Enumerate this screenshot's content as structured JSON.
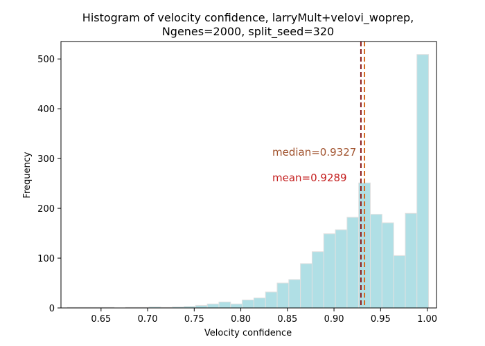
{
  "chart_data": {
    "type": "bar",
    "title_line1": "Histogram of velocity confidence, larryMult+velovi_woprep,",
    "title_line2": "Ngenes=2000, split_seed=320",
    "xlabel": "Velocity confidence",
    "ylabel": "Frequency",
    "xlim": [
      0.607,
      1.01
    ],
    "ylim": [
      0,
      535
    ],
    "x_ticks": [
      "0.65",
      "0.70",
      "0.75",
      "0.80",
      "0.85",
      "0.90",
      "0.95",
      "1.00"
    ],
    "y_ticks": [
      "0",
      "100",
      "200",
      "300",
      "400",
      "500"
    ],
    "bins": [
      {
        "start": 0.614,
        "end": 0.6265,
        "count": 1
      },
      {
        "start": 0.6265,
        "end": 0.639,
        "count": 1
      },
      {
        "start": 0.639,
        "end": 0.6515,
        "count": 1
      },
      {
        "start": 0.6515,
        "end": 0.664,
        "count": 1
      },
      {
        "start": 0.664,
        "end": 0.6765,
        "count": 0
      },
      {
        "start": 0.6765,
        "end": 0.689,
        "count": 1
      },
      {
        "start": 0.689,
        "end": 0.7015,
        "count": 1
      },
      {
        "start": 0.7015,
        "end": 0.714,
        "count": 2
      },
      {
        "start": 0.714,
        "end": 0.7265,
        "count": 1
      },
      {
        "start": 0.7265,
        "end": 0.739,
        "count": 2
      },
      {
        "start": 0.739,
        "end": 0.7515,
        "count": 3
      },
      {
        "start": 0.7515,
        "end": 0.764,
        "count": 5
      },
      {
        "start": 0.764,
        "end": 0.7765,
        "count": 8
      },
      {
        "start": 0.7765,
        "end": 0.789,
        "count": 12
      },
      {
        "start": 0.789,
        "end": 0.8015,
        "count": 8
      },
      {
        "start": 0.8015,
        "end": 0.814,
        "count": 16
      },
      {
        "start": 0.814,
        "end": 0.8265,
        "count": 20
      },
      {
        "start": 0.8265,
        "end": 0.839,
        "count": 32
      },
      {
        "start": 0.839,
        "end": 0.8515,
        "count": 50
      },
      {
        "start": 0.8515,
        "end": 0.864,
        "count": 57
      },
      {
        "start": 0.864,
        "end": 0.8765,
        "count": 89
      },
      {
        "start": 0.8765,
        "end": 0.889,
        "count": 113
      },
      {
        "start": 0.889,
        "end": 0.9015,
        "count": 149
      },
      {
        "start": 0.9015,
        "end": 0.914,
        "count": 157
      },
      {
        "start": 0.914,
        "end": 0.9265,
        "count": 182
      },
      {
        "start": 0.9265,
        "end": 0.939,
        "count": 251
      },
      {
        "start": 0.939,
        "end": 0.9515,
        "count": 188
      },
      {
        "start": 0.9515,
        "end": 0.964,
        "count": 171
      },
      {
        "start": 0.964,
        "end": 0.9765,
        "count": 105
      },
      {
        "start": 0.9765,
        "end": 0.989,
        "count": 190
      },
      {
        "start": 0.989,
        "end": 1.0015,
        "count": 509
      }
    ],
    "mean": 0.9289,
    "median": 0.9327,
    "mean_label": "mean=0.9289",
    "median_label": "median=0.9327",
    "colors": {
      "bar_fill": "#b0dfe5",
      "bar_edge": "#e0e0e0",
      "mean_line": "#8b1a1a",
      "median_line": "#d2691e",
      "mean_text": "#c41e1e",
      "median_text": "#a0522d"
    }
  }
}
